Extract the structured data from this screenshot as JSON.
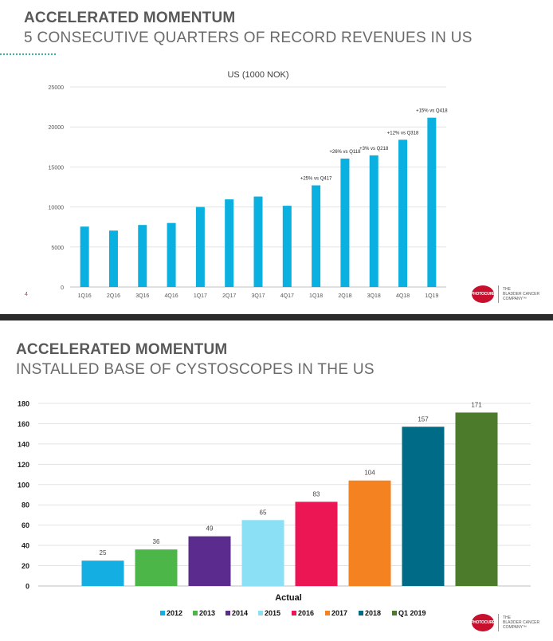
{
  "slide1": {
    "title": "ACCELERATED MOMENTUM",
    "subtitle": "5 CONSECUTIVE QUARTERS OF RECORD REVENUES IN US",
    "page_number": "4"
  },
  "slide2": {
    "title": "ACCELERATED MOMENTUM",
    "subtitle": "INSTALLED BASE OF CYSTOSCOPES IN THE US"
  },
  "logo": {
    "badge": "PHOTOCURE",
    "line1": "THE",
    "line2": "BLADDER CANCER",
    "line3": "COMPANY™",
    "color": "#c8102e"
  },
  "chart_data": [
    {
      "type": "bar",
      "title": "US (1000 NOK)",
      "categories": [
        "1Q16",
        "2Q16",
        "3Q16",
        "4Q16",
        "1Q17",
        "2Q17",
        "3Q17",
        "4Q17",
        "1Q18",
        "2Q18",
        "3Q18",
        "4Q18",
        "1Q19"
      ],
      "values": [
        7550,
        7050,
        7750,
        8000,
        10000,
        10950,
        11300,
        10150,
        12700,
        16050,
        16450,
        18400,
        21150
      ],
      "annotations": [
        "",
        "",
        "",
        "",
        "",
        "",
        "",
        "",
        "+25% vs Q417",
        "+26% vs Q118",
        "+3% vs Q218",
        "+12% vs Q318",
        "+15% vs Q418"
      ],
      "ylim": [
        0,
        25000
      ],
      "yticks": [
        0,
        5000,
        10000,
        15000,
        20000,
        25000
      ],
      "grid": true,
      "color": "#0ab0e0"
    },
    {
      "type": "bar",
      "xlabel": "Actual",
      "categories": [
        "2012",
        "2013",
        "2014",
        "2015",
        "2016",
        "2017",
        "2018",
        "Q1 2019"
      ],
      "values": [
        25,
        36,
        49,
        65,
        83,
        104,
        157,
        171
      ],
      "colors": [
        "#14aee3",
        "#4cb748",
        "#5b2c8d",
        "#8be0f5",
        "#ec1654",
        "#f48221",
        "#006b86",
        "#4b7b2b"
      ],
      "ylim": [
        0,
        180
      ],
      "yticks": [
        0,
        20,
        40,
        60,
        80,
        100,
        120,
        140,
        160,
        180
      ],
      "grid": true,
      "legend_position": "bottom"
    }
  ]
}
